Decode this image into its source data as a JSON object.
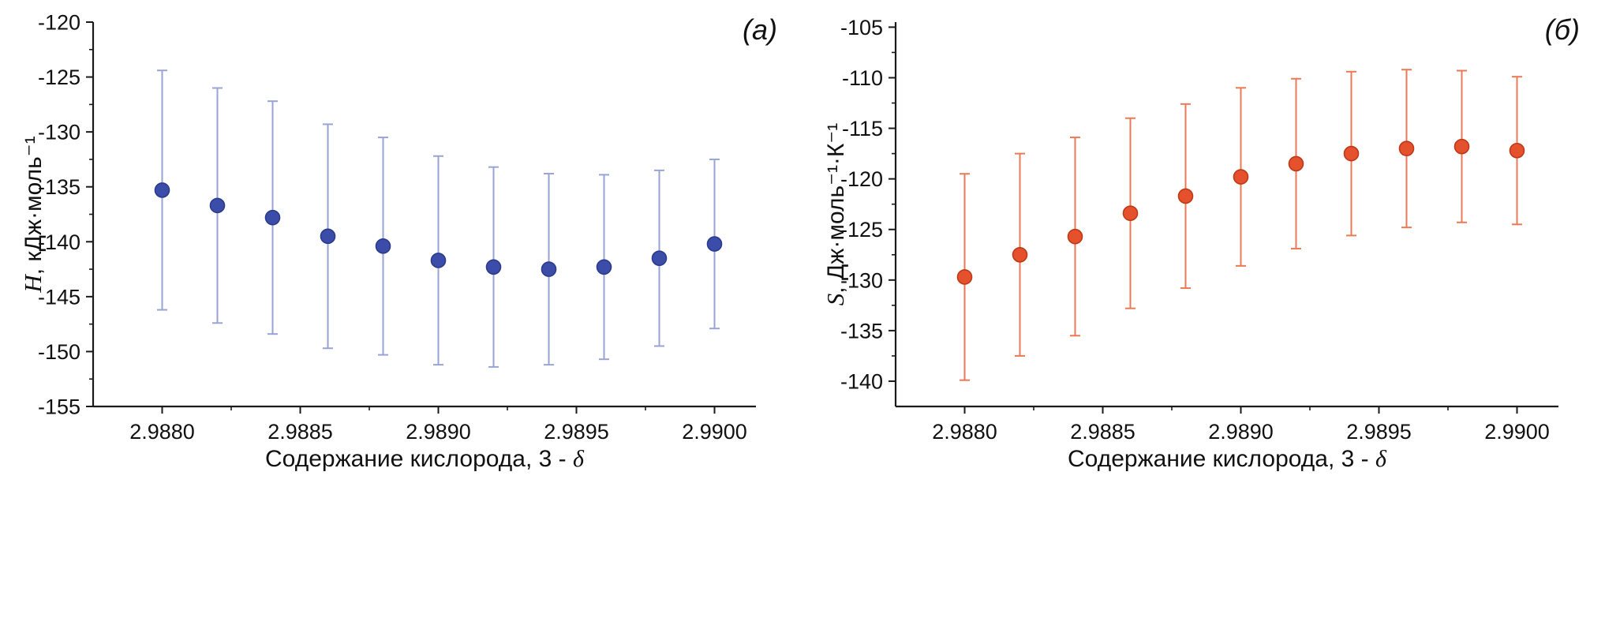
{
  "figure": {
    "background": "#ffffff",
    "panel_count": 2
  },
  "chart_data": [
    {
      "type": "scatter",
      "panel_label": "(а)",
      "title": "",
      "xlabel": "Содержание кислорода, 3 - δ",
      "xlabel_main": "Содержание кислорода, 3 - ",
      "xlabel_symbol": "δ",
      "ylabel": "H, кДж·моль⁻¹",
      "ylabel_var": "H",
      "ylabel_rest": ",  кДж·моль⁻¹",
      "x": [
        2.988,
        2.9882,
        2.9884,
        2.9886,
        2.9888,
        2.989,
        2.9892,
        2.9894,
        2.9896,
        2.9898,
        2.99
      ],
      "y": [
        -135.3,
        -136.7,
        -137.8,
        -139.5,
        -140.4,
        -141.7,
        -142.3,
        -142.5,
        -142.3,
        -141.5,
        -140.2
      ],
      "yerr": [
        10.9,
        10.7,
        10.6,
        10.2,
        9.9,
        9.5,
        9.1,
        8.7,
        8.4,
        8.0,
        7.7
      ],
      "xlim": [
        2.98775,
        2.99015
      ],
      "ylim": [
        -155,
        -120
      ],
      "xticks": [
        2.988,
        2.9885,
        2.989,
        2.9895,
        2.99
      ],
      "xtick_labels": [
        "2.9880",
        "2.9885",
        "2.9890",
        "2.9895",
        "2.9900"
      ],
      "x_minor_step": 0.00025,
      "yticks": [
        -155,
        -150,
        -145,
        -140,
        -135,
        -130,
        -125,
        -120
      ],
      "ytick_labels": [
        "-155",
        "-150",
        "-145",
        "-140",
        "-135",
        "-130",
        "-125",
        "-120"
      ],
      "y_minor_step": 2.5,
      "grid": false,
      "legend": null,
      "marker_color": "#3b4da8",
      "marker_edge_color": "#2c3b8d",
      "error_bar_color": "#9aa3d6",
      "axis_color": "#1a1a1a"
    },
    {
      "type": "scatter",
      "panel_label": "(б)",
      "title": "",
      "xlabel": "Содержание кислорода, 3 - δ",
      "xlabel_main": "Содержание кислорода, 3 - ",
      "xlabel_symbol": "δ",
      "ylabel": "S, Дж·моль⁻¹·К⁻¹",
      "ylabel_var": "S",
      "ylabel_rest": ",  Дж·моль⁻¹·К⁻¹",
      "x": [
        2.988,
        2.9882,
        2.9884,
        2.9886,
        2.9888,
        2.989,
        2.9892,
        2.9894,
        2.9896,
        2.9898,
        2.99
      ],
      "y": [
        -129.7,
        -127.5,
        -125.7,
        -123.4,
        -121.7,
        -119.8,
        -118.5,
        -117.5,
        -117.0,
        -116.8,
        -117.2
      ],
      "yerr": [
        10.2,
        10.0,
        9.8,
        9.4,
        9.1,
        8.8,
        8.4,
        8.1,
        7.8,
        7.5,
        7.3
      ],
      "xlim": [
        2.98775,
        2.99015
      ],
      "ylim": [
        -142.5,
        -104.5
      ],
      "xticks": [
        2.988,
        2.9885,
        2.989,
        2.9895,
        2.99
      ],
      "xtick_labels": [
        "2.9880",
        "2.9885",
        "2.9890",
        "2.9895",
        "2.9900"
      ],
      "x_minor_step": 0.00025,
      "yticks": [
        -140,
        -135,
        -130,
        -125,
        -120,
        -115,
        -110,
        -105
      ],
      "ytick_labels": [
        "-140",
        "-135",
        "-130",
        "-125",
        "-120",
        "-115",
        "-110",
        "-105"
      ],
      "y_minor_step": 2.5,
      "grid": false,
      "legend": null,
      "marker_color": "#e5512d",
      "marker_edge_color": "#bd3917",
      "error_bar_color": "#ea7a55",
      "axis_color": "#1a1a1a"
    }
  ]
}
